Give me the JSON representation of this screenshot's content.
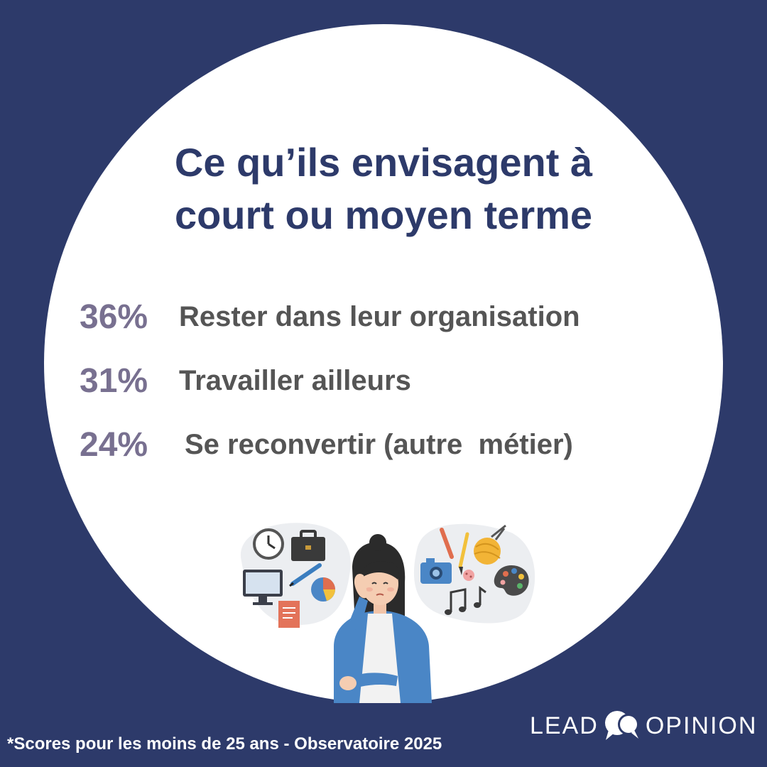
{
  "title": {
    "line1": "Ce qu’ils envisagent à",
    "line2": "court ou moyen terme"
  },
  "stats": [
    {
      "percent": "36%",
      "label": "Rester dans leur organisation"
    },
    {
      "percent": "31%",
      "label": "Travailler ailleurs"
    },
    {
      "percent": "24%",
      "label": "Se reconvertir (autre  métier)"
    }
  ],
  "footnote": "*Scores pour les moins de 25 ans - Observatoire 2025",
  "logo": {
    "word1": "LEAD",
    "word2": "OPINION",
    "mark_icon": "speech-bubbles-icon"
  },
  "colors": {
    "background": "#2d3a6a",
    "circle": "#ffffff",
    "title": "#2d3a6a",
    "percent": "#787090",
    "label": "#555555"
  },
  "illustration": {
    "subject": "woman-thinking-illustration",
    "left_icons": [
      "clock-icon",
      "briefcase-icon",
      "monitor-icon",
      "pen-icon",
      "pie-chart-icon",
      "document-icon"
    ],
    "right_icons": [
      "pencil-icon",
      "brush-icon",
      "yarn-ball-icon",
      "camera-icon",
      "button-icon",
      "music-notes-icon",
      "palette-icon"
    ]
  }
}
